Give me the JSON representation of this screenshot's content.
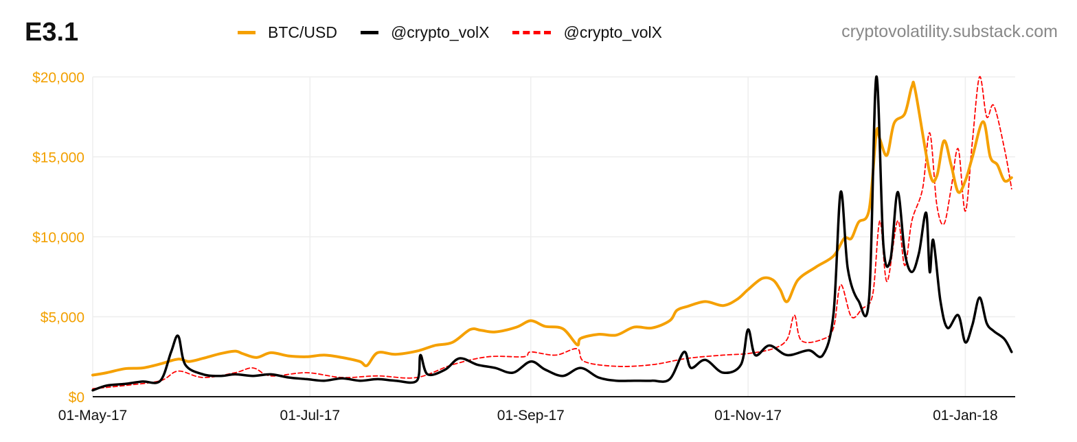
{
  "header": {
    "title": "E3.1",
    "source": "cryptovolatility.substack.com"
  },
  "colors": {
    "btc": "#f5a000",
    "vol_black": "#000000",
    "vol_red": "#ff0000",
    "y_tick": "#f2a000",
    "grid": "#eeeeee"
  },
  "chart_data": {
    "type": "line",
    "title": "E3.1",
    "x_axis": {
      "range": [
        "2017-05-01",
        "2018-01-15"
      ],
      "ticks": [
        "01-May-17",
        "01-Jul-17",
        "01-Sep-17",
        "01-Nov-17",
        "01-Jan-18"
      ],
      "tick_dates": [
        "2017-05-01",
        "2017-07-01",
        "2017-09-01",
        "2017-11-01",
        "2018-01-01"
      ]
    },
    "y_axis": {
      "range": [
        0,
        20000
      ],
      "ticks": [
        "$0",
        "$5,000",
        "$10,000",
        "$15,000",
        "$20,000"
      ],
      "tick_values": [
        0,
        5000,
        10000,
        15000,
        20000
      ]
    },
    "grid": true,
    "legend": {
      "placement": "top-center"
    },
    "series": [
      {
        "name": "BTC/USD",
        "color": "#f5a000",
        "style": "solid",
        "points": [
          [
            "2017-05-01",
            1350
          ],
          [
            "2017-05-05",
            1500
          ],
          [
            "2017-05-10",
            1750
          ],
          [
            "2017-05-15",
            1800
          ],
          [
            "2017-05-20",
            2050
          ],
          [
            "2017-05-25",
            2350
          ],
          [
            "2017-05-28",
            2200
          ],
          [
            "2017-06-01",
            2400
          ],
          [
            "2017-06-06",
            2700
          ],
          [
            "2017-06-10",
            2850
          ],
          [
            "2017-06-12",
            2700
          ],
          [
            "2017-06-16",
            2450
          ],
          [
            "2017-06-20",
            2750
          ],
          [
            "2017-06-25",
            2550
          ],
          [
            "2017-06-30",
            2500
          ],
          [
            "2017-07-05",
            2600
          ],
          [
            "2017-07-10",
            2450
          ],
          [
            "2017-07-15",
            2200
          ],
          [
            "2017-07-17",
            1950
          ],
          [
            "2017-07-20",
            2750
          ],
          [
            "2017-07-25",
            2650
          ],
          [
            "2017-07-31",
            2850
          ],
          [
            "2017-08-05",
            3200
          ],
          [
            "2017-08-10",
            3400
          ],
          [
            "2017-08-15",
            4200
          ],
          [
            "2017-08-18",
            4150
          ],
          [
            "2017-08-22",
            4050
          ],
          [
            "2017-08-28",
            4350
          ],
          [
            "2017-09-01",
            4750
          ],
          [
            "2017-09-05",
            4400
          ],
          [
            "2017-09-10",
            4250
          ],
          [
            "2017-09-14",
            3250
          ],
          [
            "2017-09-15",
            3650
          ],
          [
            "2017-09-20",
            3900
          ],
          [
            "2017-09-25",
            3850
          ],
          [
            "2017-09-30",
            4350
          ],
          [
            "2017-10-05",
            4300
          ],
          [
            "2017-10-10",
            4750
          ],
          [
            "2017-10-12",
            5400
          ],
          [
            "2017-10-15",
            5650
          ],
          [
            "2017-10-20",
            5950
          ],
          [
            "2017-10-25",
            5700
          ],
          [
            "2017-10-29",
            6100
          ],
          [
            "2017-11-01",
            6700
          ],
          [
            "2017-11-05",
            7400
          ],
          [
            "2017-11-08",
            7300
          ],
          [
            "2017-11-10",
            6700
          ],
          [
            "2017-11-12",
            5950
          ],
          [
            "2017-11-15",
            7300
          ],
          [
            "2017-11-20",
            8100
          ],
          [
            "2017-11-25",
            8800
          ],
          [
            "2017-11-28",
            9900
          ],
          [
            "2017-11-30",
            9900
          ],
          [
            "2017-12-02",
            10900
          ],
          [
            "2017-12-05",
            11700
          ],
          [
            "2017-12-07",
            16500
          ],
          [
            "2017-12-08",
            16100
          ],
          [
            "2017-12-10",
            15100
          ],
          [
            "2017-12-12",
            17100
          ],
          [
            "2017-12-15",
            17700
          ],
          [
            "2017-12-17",
            19400
          ],
          [
            "2017-12-18",
            19100
          ],
          [
            "2017-12-22",
            14000
          ],
          [
            "2017-12-24",
            13800
          ],
          [
            "2017-12-26",
            16000
          ],
          [
            "2017-12-28",
            14500
          ],
          [
            "2017-12-30",
            12800
          ],
          [
            "2018-01-01",
            13500
          ],
          [
            "2018-01-03",
            15000
          ],
          [
            "2018-01-06",
            17200
          ],
          [
            "2018-01-08",
            15000
          ],
          [
            "2018-01-10",
            14500
          ],
          [
            "2018-01-12",
            13500
          ],
          [
            "2018-01-14",
            13700
          ]
        ]
      },
      {
        "name": "@crypto_volX",
        "color": "#000000",
        "style": "solid",
        "points": [
          [
            "2017-05-01",
            400
          ],
          [
            "2017-05-05",
            700
          ],
          [
            "2017-05-10",
            800
          ],
          [
            "2017-05-15",
            950
          ],
          [
            "2017-05-20",
            1000
          ],
          [
            "2017-05-23",
            2800
          ],
          [
            "2017-05-25",
            3800
          ],
          [
            "2017-05-27",
            2000
          ],
          [
            "2017-06-01",
            1400
          ],
          [
            "2017-06-06",
            1300
          ],
          [
            "2017-06-10",
            1400
          ],
          [
            "2017-06-15",
            1300
          ],
          [
            "2017-06-20",
            1400
          ],
          [
            "2017-06-25",
            1200
          ],
          [
            "2017-06-30",
            1100
          ],
          [
            "2017-07-05",
            1000
          ],
          [
            "2017-07-10",
            1150
          ],
          [
            "2017-07-15",
            1000
          ],
          [
            "2017-07-20",
            1100
          ],
          [
            "2017-07-25",
            1000
          ],
          [
            "2017-07-31",
            1000
          ],
          [
            "2017-08-01",
            2600
          ],
          [
            "2017-08-03",
            1400
          ],
          [
            "2017-08-08",
            1700
          ],
          [
            "2017-08-12",
            2400
          ],
          [
            "2017-08-17",
            2000
          ],
          [
            "2017-08-22",
            1800
          ],
          [
            "2017-08-27",
            1500
          ],
          [
            "2017-09-01",
            2200
          ],
          [
            "2017-09-05",
            1700
          ],
          [
            "2017-09-10",
            1300
          ],
          [
            "2017-09-15",
            1800
          ],
          [
            "2017-09-20",
            1200
          ],
          [
            "2017-09-25",
            1000
          ],
          [
            "2017-09-30",
            1000
          ],
          [
            "2017-10-05",
            1000
          ],
          [
            "2017-10-10",
            1100
          ],
          [
            "2017-10-14",
            2800
          ],
          [
            "2017-10-16",
            1800
          ],
          [
            "2017-10-20",
            2300
          ],
          [
            "2017-10-25",
            1500
          ],
          [
            "2017-10-30",
            2000
          ],
          [
            "2017-11-01",
            4200
          ],
          [
            "2017-11-03",
            2600
          ],
          [
            "2017-11-07",
            3200
          ],
          [
            "2017-11-12",
            2600
          ],
          [
            "2017-11-18",
            2900
          ],
          [
            "2017-11-22",
            2600
          ],
          [
            "2017-11-25",
            5200
          ],
          [
            "2017-11-27",
            12800
          ],
          [
            "2017-11-29",
            8000
          ],
          [
            "2017-12-02",
            6000
          ],
          [
            "2017-12-05",
            6200
          ],
          [
            "2017-12-07",
            20000
          ],
          [
            "2017-12-09",
            9500
          ],
          [
            "2017-12-11",
            8600
          ],
          [
            "2017-12-13",
            12800
          ],
          [
            "2017-12-15",
            9000
          ],
          [
            "2017-12-17",
            7800
          ],
          [
            "2017-12-19",
            9000
          ],
          [
            "2017-12-21",
            11500
          ],
          [
            "2017-12-22",
            7800
          ],
          [
            "2017-12-23",
            9800
          ],
          [
            "2017-12-25",
            6000
          ],
          [
            "2017-12-27",
            4300
          ],
          [
            "2017-12-30",
            5100
          ],
          [
            "2018-01-01",
            3400
          ],
          [
            "2018-01-03",
            4500
          ],
          [
            "2018-01-05",
            6200
          ],
          [
            "2018-01-07",
            4600
          ],
          [
            "2018-01-09",
            4100
          ],
          [
            "2018-01-12",
            3600
          ],
          [
            "2018-01-14",
            2800
          ]
        ]
      },
      {
        "name": "@crypto_volX",
        "color": "#ff0000",
        "style": "dashed",
        "points": [
          [
            "2017-05-01",
            500
          ],
          [
            "2017-05-10",
            700
          ],
          [
            "2017-05-20",
            1000
          ],
          [
            "2017-05-25",
            1600
          ],
          [
            "2017-06-01",
            1200
          ],
          [
            "2017-06-10",
            1500
          ],
          [
            "2017-06-15",
            1800
          ],
          [
            "2017-06-20",
            1300
          ],
          [
            "2017-06-30",
            1500
          ],
          [
            "2017-07-10",
            1200
          ],
          [
            "2017-07-20",
            1300
          ],
          [
            "2017-07-31",
            1200
          ],
          [
            "2017-08-10",
            2000
          ],
          [
            "2017-08-20",
            2500
          ],
          [
            "2017-08-30",
            2500
          ],
          [
            "2017-09-01",
            2800
          ],
          [
            "2017-09-08",
            2600
          ],
          [
            "2017-09-14",
            3000
          ],
          [
            "2017-09-16",
            2200
          ],
          [
            "2017-09-25",
            1900
          ],
          [
            "2017-10-05",
            2000
          ],
          [
            "2017-10-15",
            2400
          ],
          [
            "2017-10-25",
            2600
          ],
          [
            "2017-11-01",
            2700
          ],
          [
            "2017-11-08",
            3000
          ],
          [
            "2017-11-12",
            3600
          ],
          [
            "2017-11-14",
            5100
          ],
          [
            "2017-11-16",
            3500
          ],
          [
            "2017-11-22",
            3600
          ],
          [
            "2017-11-25",
            4300
          ],
          [
            "2017-11-27",
            7000
          ],
          [
            "2017-11-30",
            5000
          ],
          [
            "2017-12-03",
            5500
          ],
          [
            "2017-12-06",
            6400
          ],
          [
            "2017-12-08",
            11000
          ],
          [
            "2017-12-10",
            7200
          ],
          [
            "2017-12-13",
            11000
          ],
          [
            "2017-12-15",
            8200
          ],
          [
            "2017-12-17",
            11000
          ],
          [
            "2017-12-20",
            13000
          ],
          [
            "2017-12-22",
            16500
          ],
          [
            "2017-12-24",
            12000
          ],
          [
            "2017-12-26",
            10800
          ],
          [
            "2017-12-28",
            13000
          ],
          [
            "2017-12-30",
            15500
          ],
          [
            "2018-01-01",
            11600
          ],
          [
            "2018-01-03",
            16000
          ],
          [
            "2018-01-05",
            20000
          ],
          [
            "2018-01-07",
            17500
          ],
          [
            "2018-01-09",
            18200
          ],
          [
            "2018-01-12",
            15500
          ],
          [
            "2018-01-14",
            13000
          ]
        ]
      }
    ]
  }
}
